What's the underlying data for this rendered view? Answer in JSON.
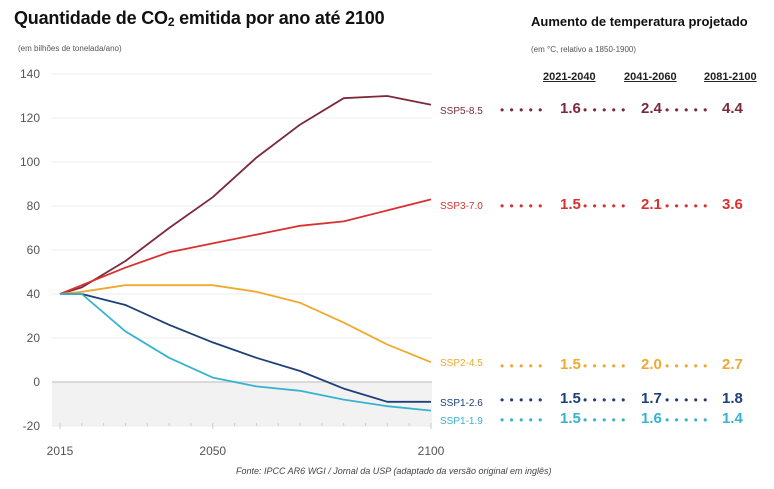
{
  "header": {
    "title_prefix": "Quantidade de CO",
    "title_sub": "2",
    "title_suffix": " emitida por ano até 2100",
    "subtitle": "(em bilhões de tonelada/ano)"
  },
  "temperature_panel": {
    "title": "Aumento de temperatura projetado",
    "subtitle": "(em °C, relativo a 1850-1900)",
    "periods": [
      "2021-2040",
      "2041-2060",
      "2081-2100"
    ],
    "dots": "• • • • •",
    "rows": [
      {
        "scenario": "SSP5-8.5",
        "values": [
          "1.6",
          "2.4",
          "4.4"
        ],
        "color": "#7a2a3a"
      },
      {
        "scenario": "SSP3-7.0",
        "values": [
          "1.5",
          "2.1",
          "3.6"
        ],
        "color": "#d93030"
      },
      {
        "scenario": "SSP2-4.5",
        "values": [
          "1.5",
          "2.0",
          "2.7"
        ],
        "color": "#f0a830"
      },
      {
        "scenario": "SSP1-2.6",
        "values": [
          "1.5",
          "1.7",
          "1.8"
        ],
        "color": "#1e3f7a"
      },
      {
        "scenario": "SSP1-1.9",
        "values": [
          "1.5",
          "1.6",
          "1.4"
        ],
        "color": "#35b3d0"
      }
    ]
  },
  "footer": {
    "source": "Fonte: IPCC AR6 WGI / Jornal da USP (adaptado da versão original em inglês)"
  },
  "chart_data": {
    "type": "line",
    "title": "Quantidade de CO2 emitida por ano até 2100",
    "xlabel": "",
    "ylabel": "(em bilhões de tonelada/ano)",
    "x": [
      2015,
      2020,
      2030,
      2040,
      2050,
      2060,
      2070,
      2080,
      2090,
      2100
    ],
    "xlim": [
      2015,
      2100
    ],
    "ylim": [
      -20,
      140
    ],
    "xticks": [
      2015,
      2050,
      2100
    ],
    "yticks": [
      -20,
      0,
      20,
      40,
      60,
      80,
      100,
      120,
      140
    ],
    "ytick_labels": [
      "-20",
      "0",
      "20",
      "40",
      "60",
      "80",
      "100",
      "120",
      "140"
    ],
    "grid": true,
    "negative_region_shaded": true,
    "series": [
      {
        "name": "SSP5-8.5",
        "color": "#7a2a3a",
        "values": [
          40,
          43,
          55,
          70,
          84,
          102,
          117,
          129,
          130,
          126
        ]
      },
      {
        "name": "SSP3-7.0",
        "color": "#d93030",
        "values": [
          40,
          44,
          52,
          59,
          63,
          67,
          71,
          73,
          78,
          83
        ]
      },
      {
        "name": "SSP2-4.5",
        "color": "#f0a830",
        "values": [
          40,
          41,
          44,
          44,
          44,
          41,
          36,
          27,
          17,
          9
        ]
      },
      {
        "name": "SSP1-2.6",
        "color": "#1e3f7a",
        "values": [
          40,
          40,
          35,
          26,
          18,
          11,
          5,
          -3,
          -9,
          -9
        ]
      },
      {
        "name": "SSP1-1.9",
        "color": "#35b3d0",
        "values": [
          40,
          40,
          23,
          11,
          2,
          -2,
          -4,
          -8,
          -11,
          -13
        ]
      }
    ]
  }
}
